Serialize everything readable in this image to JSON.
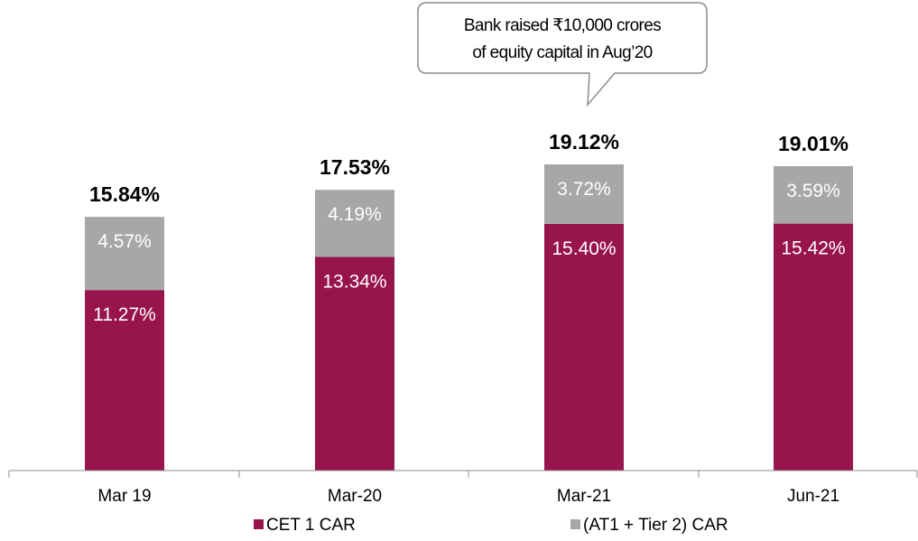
{
  "chart_data": {
    "type": "bar",
    "stacked": true,
    "categories": [
      "Mar 19",
      "Mar-20",
      "Mar-21",
      "Jun-21"
    ],
    "series": [
      {
        "name": "CET 1 CAR",
        "values": [
          11.27,
          13.34,
          15.4,
          15.42
        ],
        "labels": [
          "11.27%",
          "13.34%",
          "15.40%",
          "15.42%"
        ],
        "color": "#97144d"
      },
      {
        "name": "(AT1 + Tier 2) CAR",
        "values": [
          4.57,
          4.19,
          3.72,
          3.59
        ],
        "labels": [
          "4.57%",
          "4.19%",
          "3.72%",
          "3.59%"
        ],
        "color": "#a7a7a7"
      }
    ],
    "totals": [
      15.84,
      17.53,
      19.12,
      19.01
    ],
    "total_labels": [
      "15.84%",
      "17.53%",
      "19.12%",
      "19.01%"
    ],
    "ylim": [
      0,
      19.12
    ],
    "grid": false,
    "legend_position": "bottom",
    "annotation": {
      "category": "Mar-21",
      "lines": [
        "Bank raised ₹10,000 crores",
        "of equity capital in Aug’20"
      ]
    }
  }
}
